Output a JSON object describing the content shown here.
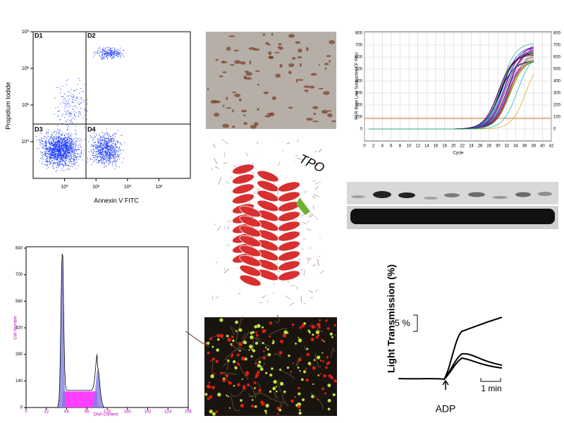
{
  "flow_cytometry": {
    "quadrants": [
      "D1",
      "D2",
      "D3",
      "D4"
    ],
    "y_label": "Propidium Iodide",
    "x_label": "Annexin V FITC",
    "log_scale": true,
    "xlim": [
      0.1,
      10000
    ],
    "ylim": [
      0.1,
      1000
    ],
    "xticks": [
      {
        "value": 1,
        "label": "10⁰"
      },
      {
        "value": 10,
        "label": "10¹"
      },
      {
        "value": 100,
        "label": "10²"
      },
      {
        "value": 1000,
        "label": "10³"
      }
    ],
    "yticks": [
      {
        "value": 1,
        "label": "10⁰"
      },
      {
        "value": 10,
        "label": "10¹"
      },
      {
        "value": 100,
        "label": "10²"
      },
      {
        "value": 1000,
        "label": "10³"
      }
    ]
  },
  "pcr": {
    "y_label": "PCR Base Line Subtracted CF RFU",
    "x_label": "Cycle",
    "xlim": [
      0,
      42
    ],
    "ylim": [
      -100,
      800
    ],
    "xticks": [
      0,
      2,
      4,
      6,
      8,
      10,
      12,
      14,
      16,
      18,
      20,
      22,
      24,
      26,
      28,
      30,
      32,
      34,
      36,
      38,
      40,
      42
    ],
    "yticks": [
      0,
      100,
      200,
      300,
      400,
      500,
      600,
      700,
      800
    ]
  },
  "protein": {
    "label": "TPO"
  },
  "histogram": {
    "y_label": "Cell Number",
    "x_label": "DNA Content",
    "xlim": [
      0,
      256
    ],
    "ylim": [
      0,
      840
    ],
    "xticks": [
      0,
      32,
      64,
      96,
      128,
      160,
      192,
      224,
      256
    ],
    "yticks": [
      0,
      140,
      280,
      420,
      560,
      700,
      840
    ]
  },
  "aggregation": {
    "y_label": "Light Transmission (%)",
    "scale_y": "5 %",
    "scale_x": "1 min",
    "agonist": "ADP"
  }
}
